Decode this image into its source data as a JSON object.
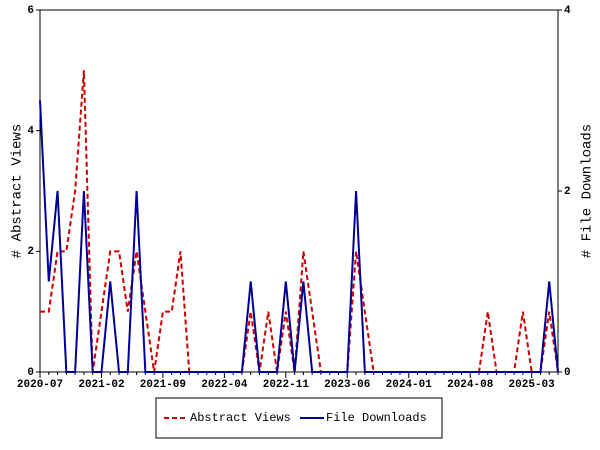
{
  "chart_data": {
    "type": "line",
    "y_label": "# Abstract Views",
    "y2_label": "# File Downloads",
    "categories": [
      "2020-07",
      null,
      null,
      null,
      null,
      null,
      null,
      "2021-02",
      null,
      null,
      null,
      null,
      null,
      null,
      "2021-09",
      null,
      null,
      null,
      null,
      null,
      null,
      "2022-04",
      null,
      null,
      null,
      null,
      null,
      null,
      "2022-11",
      null,
      null,
      null,
      null,
      null,
      null,
      "2023-06",
      null,
      null,
      null,
      null,
      null,
      null,
      "2024-01",
      null,
      null,
      null,
      null,
      null,
      null,
      "2024-08",
      null,
      null,
      null,
      null,
      null,
      null,
      "2025-03",
      null,
      null,
      null
    ],
    "series": [
      {
        "name": "Abstract Views",
        "color": "#cc0000",
        "dash": true,
        "axis": "y",
        "values": [
          1,
          1,
          2,
          2,
          3,
          5,
          0,
          1,
          2,
          2,
          1,
          2,
          1,
          0,
          1,
          1,
          2,
          0,
          0,
          0,
          0,
          0,
          0,
          0,
          1,
          0,
          1,
          0,
          1,
          0,
          2,
          1,
          0,
          0,
          0,
          0,
          2,
          1,
          0,
          0,
          0,
          0,
          0,
          0,
          0,
          0,
          0,
          0,
          0,
          0,
          0,
          1,
          0,
          0,
          0,
          1,
          0,
          0,
          1,
          0
        ]
      },
      {
        "name": "File Downloads",
        "color": "#000099",
        "dash": false,
        "axis": "y2",
        "values": [
          3,
          1,
          2,
          0,
          0,
          2,
          0,
          0,
          1,
          0,
          0,
          2,
          0,
          0,
          0,
          0,
          0,
          0,
          0,
          0,
          0,
          0,
          0,
          0,
          1,
          0,
          0,
          0,
          1,
          0,
          1,
          0,
          0,
          0,
          0,
          0,
          2,
          0,
          0,
          0,
          0,
          0,
          0,
          0,
          0,
          0,
          0,
          0,
          0,
          0,
          0,
          0,
          0,
          0,
          0,
          0,
          0,
          0,
          1,
          0
        ]
      }
    ],
    "ylim": [
      0,
      6
    ],
    "yticks": [
      0,
      2,
      4,
      6
    ],
    "y2lim": [
      0,
      4
    ],
    "y2ticks": [
      0,
      2,
      4
    ],
    "legend": "bottom"
  }
}
